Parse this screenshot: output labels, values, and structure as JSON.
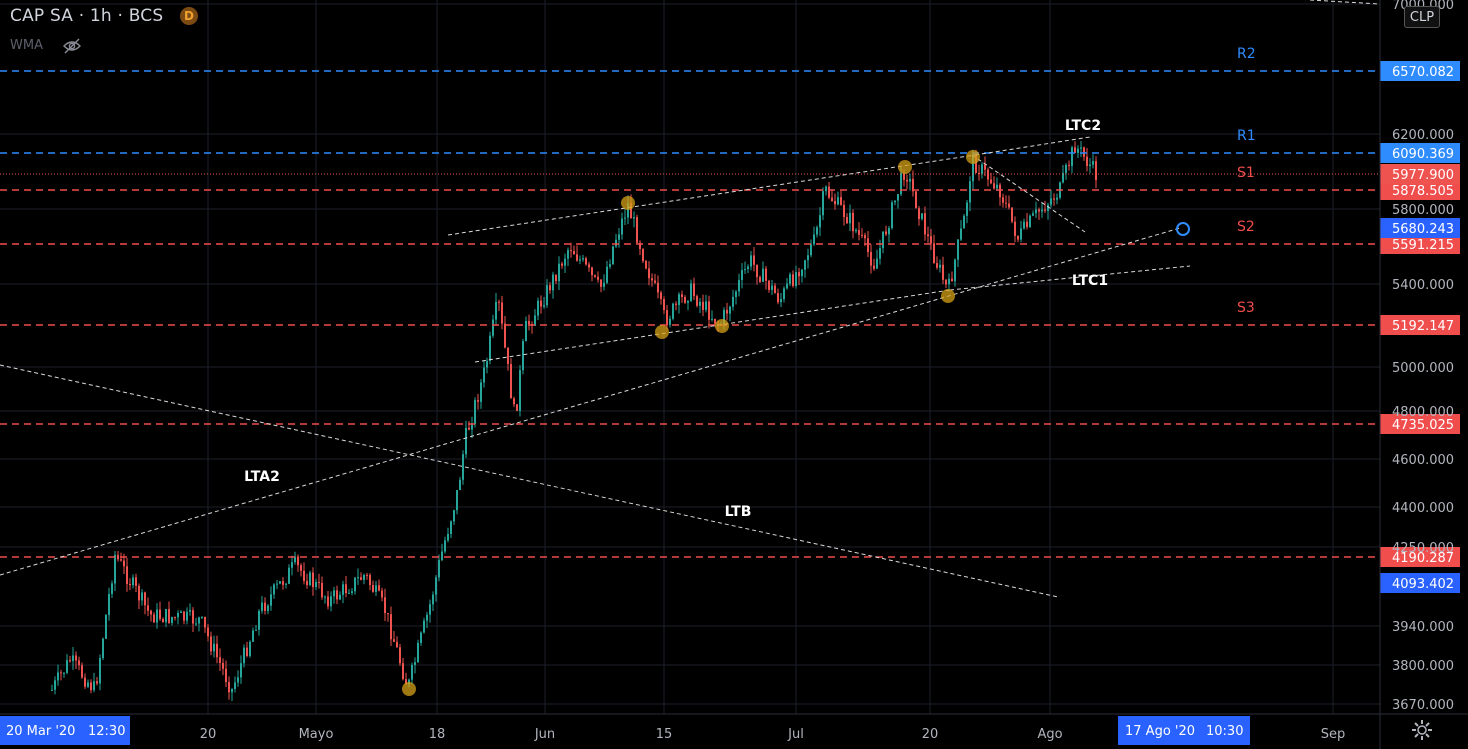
{
  "header": {
    "symbol_line": "CAP SA · 1h · BCS",
    "badge": "D",
    "indicator": "WMA",
    "indicator_icon": "eye-slash-icon"
  },
  "currency_button": "CLP",
  "settings_icon": "gear-icon",
  "colors": {
    "background": "#000000",
    "grid": "#1c1f2a",
    "resistance": "#2f8cff",
    "support": "#f04d4d",
    "candle_up": "#26a69a",
    "candle_down": "#ef5350",
    "trendline": "#d9d9d9",
    "marker": "#d4a017"
  },
  "y_axis": {
    "ticks": [
      "7000.000",
      "6200.000",
      "5800.000",
      "5400.000",
      "5000.000",
      "4800.000",
      "4600.000",
      "4400.000",
      "4250.000",
      "3940.000",
      "3800.000",
      "3670.000"
    ]
  },
  "x_axis": {
    "ticks": [
      "20",
      "Mayo",
      "18",
      "Jun",
      "15",
      "Jul",
      "20",
      "Ago",
      "Sep"
    ],
    "start_label": "20 Mar '20",
    "start_time": "12:30",
    "cursor_label": "17 Ago '20",
    "cursor_time": "10:30"
  },
  "levels": [
    {
      "name": "R2",
      "price": "6570.082",
      "type": "resistance"
    },
    {
      "name": "R1",
      "price": "6090.369",
      "type": "resistance"
    },
    {
      "name": "S1",
      "price": "5878.505",
      "type": "support"
    },
    {
      "name": "S2",
      "price": "5591.215",
      "type": "support"
    },
    {
      "name": "S3",
      "price": "5192.147",
      "type": "support"
    },
    {
      "name": "",
      "price": "4735.025",
      "type": "support"
    },
    {
      "name": "",
      "price": "4190.287",
      "type": "support"
    }
  ],
  "price_tags": {
    "last": "5977.900",
    "cursor": "5680.243",
    "blue_low": "4093.402"
  },
  "trendline_labels": [
    "LTC2",
    "LTC1",
    "LTA2",
    "LTB"
  ]
}
